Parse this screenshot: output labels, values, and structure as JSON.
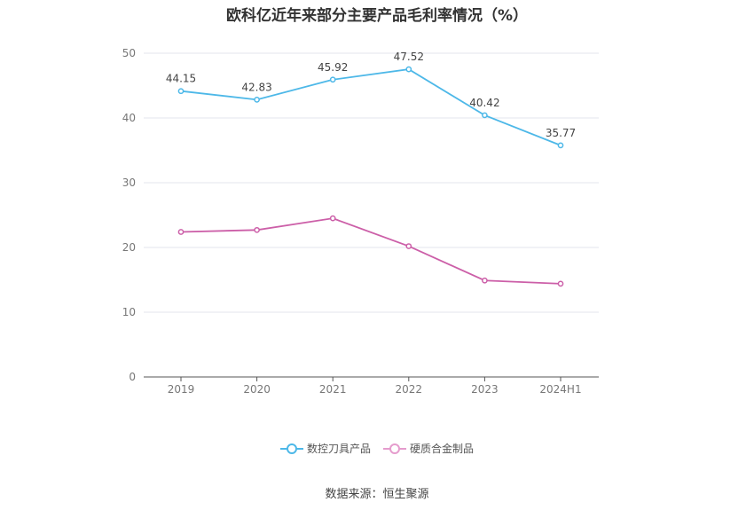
{
  "title": "欧科亿近年来部分主要产品毛利率情况（%）",
  "source": "数据来源：恒生聚源",
  "chart_data": {
    "type": "line",
    "title": "欧科亿近年来部分主要产品毛利率情况（%）",
    "categories": [
      "2019",
      "2020",
      "2021",
      "2022",
      "2023",
      "2024H1"
    ],
    "ylim": [
      0,
      50
    ],
    "yticks": [
      "0",
      "10",
      "20",
      "30",
      "40",
      "50"
    ],
    "grid": true,
    "legend_position": "bottom-center",
    "series": [
      {
        "name": "数控刀具产品",
        "values": [
          44.15,
          42.83,
          45.92,
          47.52,
          40.42,
          35.77
        ],
        "labels": [
          "44.15",
          "42.83",
          "45.92",
          "47.52",
          "40.42",
          "35.77"
        ],
        "color": "#4db8e8"
      },
      {
        "name": "硬质合金制品",
        "values": [
          22.4,
          22.7,
          24.5,
          20.2,
          14.9,
          14.4
        ],
        "color": "#cc5fa8"
      }
    ]
  }
}
